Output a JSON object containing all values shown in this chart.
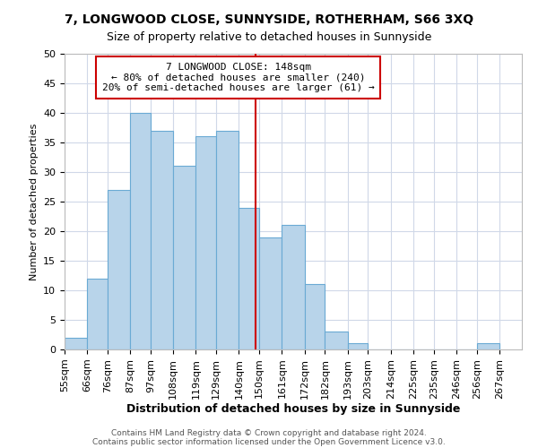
{
  "title_line1": "7, LONGWOOD CLOSE, SUNNYSIDE, ROTHERHAM, S66 3XQ",
  "title_line2": "Size of property relative to detached houses in Sunnyside",
  "xlabel": "Distribution of detached houses by size in Sunnyside",
  "ylabel": "Number of detached properties",
  "footer_line1": "Contains HM Land Registry data © Crown copyright and database right 2024.",
  "footer_line2": "Contains public sector information licensed under the Open Government Licence v3.0.",
  "bin_labels": [
    "55sqm",
    "66sqm",
    "76sqm",
    "87sqm",
    "97sqm",
    "108sqm",
    "119sqm",
    "129sqm",
    "140sqm",
    "150sqm",
    "161sqm",
    "172sqm",
    "182sqm",
    "193sqm",
    "203sqm",
    "214sqm",
    "225sqm",
    "235sqm",
    "246sqm",
    "256sqm",
    "267sqm"
  ],
  "bin_edges": [
    55,
    66,
    76,
    87,
    97,
    108,
    119,
    129,
    140,
    150,
    161,
    172,
    182,
    193,
    203,
    214,
    225,
    235,
    246,
    256,
    267
  ],
  "bar_heights": [
    2,
    12,
    27,
    40,
    37,
    31,
    36,
    37,
    24,
    19,
    21,
    11,
    3,
    1,
    0,
    0,
    0,
    0,
    0,
    1
  ],
  "bar_color": "#b8d4ea",
  "bar_edge_color": "#6aaad4",
  "vline_x": 148,
  "vline_color": "#cc0000",
  "ylim": [
    0,
    50
  ],
  "yticks": [
    0,
    5,
    10,
    15,
    20,
    25,
    30,
    35,
    40,
    45,
    50
  ],
  "annotation_title": "7 LONGWOOD CLOSE: 148sqm",
  "annotation_line1": "← 80% of detached houses are smaller (240)",
  "annotation_line2": "20% of semi-detached houses are larger (61) →",
  "annotation_box_color": "#ffffff",
  "annotation_box_edge": "#cc0000",
  "grid_color": "#d0d8e8",
  "background_color": "#ffffff",
  "title_fontsize": 10,
  "subtitle_fontsize": 9,
  "xlabel_fontsize": 9,
  "ylabel_fontsize": 8,
  "tick_fontsize": 8,
  "annot_fontsize": 8,
  "footer_fontsize": 6.5
}
